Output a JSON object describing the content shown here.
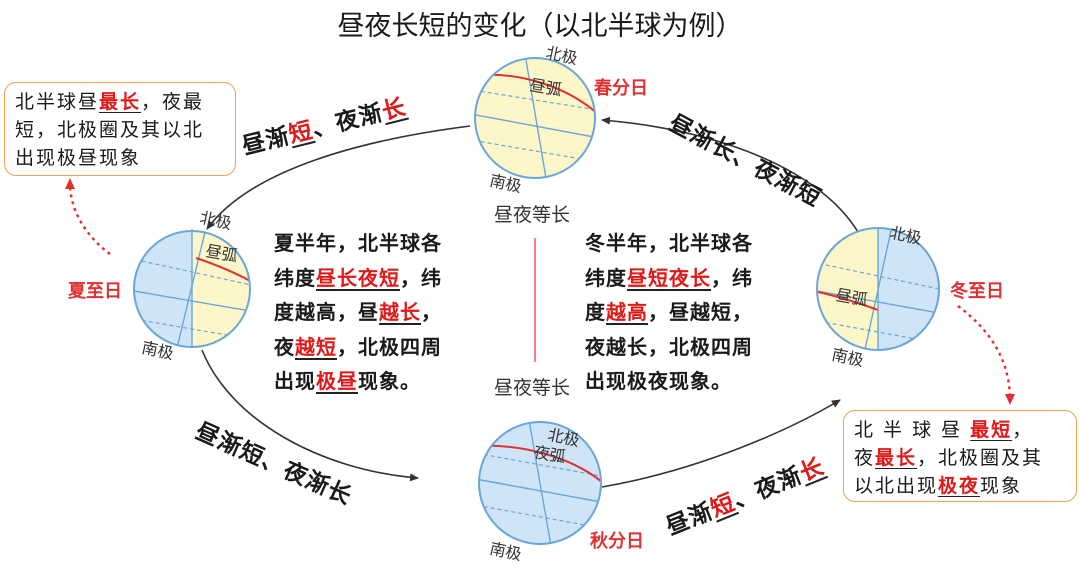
{
  "title": "昼夜长短的变化（以北半球为例）",
  "globe_labels": {
    "north": "北极",
    "south": "南极",
    "day_arc": "昼弧",
    "night_arc": "夜弧"
  },
  "seasons": {
    "spring": "春分日",
    "summer": "夏至日",
    "autumn": "秋分日",
    "winter": "冬至日"
  },
  "equal_label": "昼夜等长",
  "trends": {
    "top_left": {
      "a": "昼渐",
      "b": "短",
      "c": "、夜渐",
      "d": "长"
    },
    "top_right": {
      "a": "昼渐长",
      "b": "、夜渐短"
    },
    "bottom_left": {
      "a": "昼渐短",
      "b": "、夜渐长"
    },
    "bottom_right": {
      "a": "昼渐",
      "b": "短",
      "c": "、夜渐",
      "d": "长"
    }
  },
  "summer_panel": {
    "line1": "夏半年，北半球各",
    "line2_a": "纬度",
    "line2_b": "昼长夜短",
    "line2_c": "，纬",
    "line3_a": "度越高，昼",
    "line3_b": "越长",
    "line3_c": "，",
    "line4_a": "夜",
    "line4_b": "越短",
    "line4_c": "，北极四周",
    "line5_a": "出现",
    "line5_b": "极昼",
    "line5_c": "现象。"
  },
  "winter_panel": {
    "line1": "冬半年，北半球各",
    "line2_a": "纬度",
    "line2_b": "昼短夜长",
    "line2_c": "，纬",
    "line3_a": "度",
    "line3_b": "越高",
    "line3_c": "，昼越短，",
    "line4": "夜越长，北极四周",
    "line5": "出现极夜现象。"
  },
  "callout_summer": {
    "line1_a": "北半球昼",
    "line1_b": "最长",
    "line1_c": "，夜最",
    "line2": "短，北极圈及其以北",
    "line3": "出现极昼现象"
  },
  "callout_winter": {
    "line1_a": "北 半 球 昼 ",
    "line1_b": "最短",
    "line1_c": "，",
    "line2_a": "夜",
    "line2_b": "最长",
    "line2_c": "，北极圈及其",
    "line3_a": "以北出现",
    "line3_b": "极夜",
    "line3_c": "现象"
  },
  "colors": {
    "day": "#fdf6c8",
    "night": "#cfe4f7",
    "outline": "#6aa6d8",
    "red": "#e01818",
    "callout_border": "#f0a050"
  }
}
